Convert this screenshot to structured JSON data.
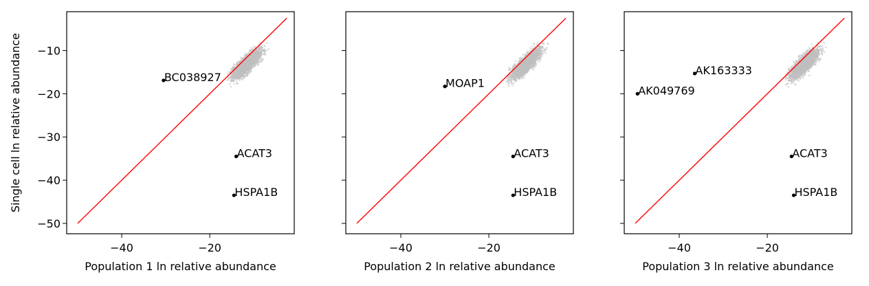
{
  "chart_data": [
    {
      "type": "scatter",
      "xlabel": "Population 1 ln relative abundance",
      "ylabel": "Single cell ln relative abundance",
      "xlim": [
        -52.5,
        -0.8
      ],
      "ylim": [
        -52.4,
        -1.0
      ],
      "xticks": [
        -40,
        -20
      ],
      "yticks": [
        -10,
        -20,
        -30,
        -40,
        -50
      ],
      "xtick_labels": [
        "−40",
        "−20"
      ],
      "ytick_labels": [
        "−10",
        "−20",
        "−30",
        "−40",
        "−50"
      ],
      "identity_line": {
        "from": [
          -50,
          -50
        ],
        "to": [
          -2.5,
          -2.5
        ],
        "color": "#ff0000"
      },
      "cloud": {
        "color": "#bfbfbf",
        "x_range": [
          -18,
          -3
        ],
        "y_range": [
          -20,
          -5
        ]
      },
      "labeled_points": [
        {
          "label": "BC038927",
          "x": -30.5,
          "y": -16.9
        },
        {
          "label": "ACAT3",
          "x": -14.0,
          "y": -34.5
        },
        {
          "label": "HSPA1B",
          "x": -14.5,
          "y": -43.5
        }
      ]
    },
    {
      "type": "scatter",
      "xlabel": "Population 2 ln relative abundance",
      "ylabel": "",
      "xlim": [
        -52.5,
        -0.8
      ],
      "ylim": [
        -52.4,
        -1.0
      ],
      "xticks": [
        -40,
        -20
      ],
      "yticks": [
        -10,
        -20,
        -30,
        -40,
        -50
      ],
      "xtick_labels": [
        "−40",
        "−20"
      ],
      "ytick_labels": [],
      "identity_line": {
        "from": [
          -50,
          -50
        ],
        "to": [
          -2.5,
          -2.5
        ],
        "color": "#ff0000"
      },
      "cloud": {
        "color": "#bfbfbf",
        "x_range": [
          -18,
          -3
        ],
        "y_range": [
          -20,
          -5
        ]
      },
      "labeled_points": [
        {
          "label": "MOAP1",
          "x": -30.0,
          "y": -18.3
        },
        {
          "label": "ACAT3",
          "x": -14.5,
          "y": -34.5
        },
        {
          "label": "HSPA1B",
          "x": -14.5,
          "y": -43.5
        }
      ]
    },
    {
      "type": "scatter",
      "xlabel": "Population 3 ln relative abundance",
      "ylabel": "",
      "xlim": [
        -52.5,
        -0.8
      ],
      "ylim": [
        -52.4,
        -1.0
      ],
      "xticks": [
        -40,
        -20
      ],
      "yticks": [
        -10,
        -20,
        -30,
        -40,
        -50
      ],
      "xtick_labels": [
        "−40",
        "−20"
      ],
      "ytick_labels": [],
      "identity_line": {
        "from": [
          -50,
          -50
        ],
        "to": [
          -2.5,
          -2.5
        ],
        "color": "#ff0000"
      },
      "cloud": {
        "color": "#bfbfbf",
        "x_range": [
          -18,
          -3
        ],
        "y_range": [
          -20,
          -5
        ]
      },
      "labeled_points": [
        {
          "label": "AK163333",
          "x": -36.5,
          "y": -15.3
        },
        {
          "label": "AK049769",
          "x": -49.5,
          "y": -20.0
        },
        {
          "label": "ACAT3",
          "x": -14.5,
          "y": -34.5
        },
        {
          "label": "HSPA1B",
          "x": -14.0,
          "y": -43.5
        }
      ]
    }
  ]
}
